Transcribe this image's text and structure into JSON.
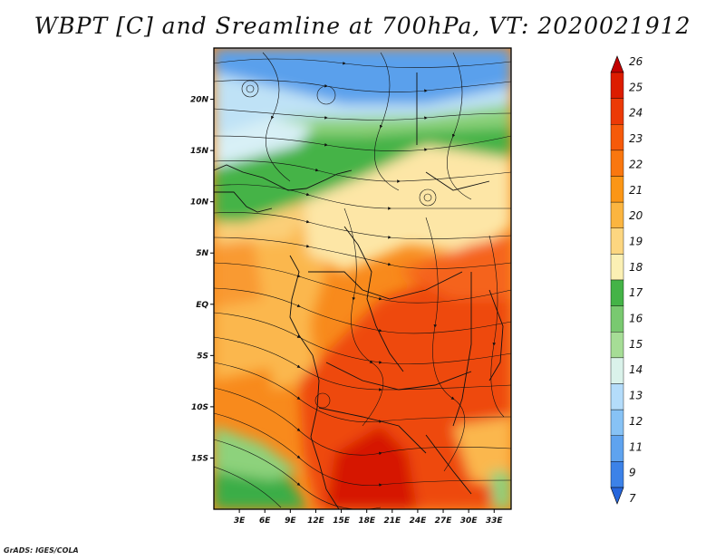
{
  "figure": {
    "title": "WBPT [C] and Sreamline at 700hPa, VT: 2020021912",
    "credit": "GrADS: IGES/COLA"
  },
  "chart_data": {
    "type": "heatmap",
    "variable": "Wet-bulb potential temperature",
    "units": "C",
    "level": "700hPa",
    "valid_time": "2020021912",
    "overlay": "streamlines",
    "x_axis": {
      "range": [
        0,
        35
      ],
      "units": "degrees east",
      "ticks": [
        3,
        6,
        9,
        12,
        15,
        18,
        21,
        24,
        27,
        30,
        33
      ],
      "tick_labels": [
        "3E",
        "6E",
        "9E",
        "12E",
        "15E",
        "18E",
        "21E",
        "24E",
        "27E",
        "30E",
        "33E"
      ]
    },
    "y_axis": {
      "range": [
        -20,
        25
      ],
      "units": "degrees north",
      "ticks": [
        20,
        15,
        10,
        5,
        0,
        -5,
        -10,
        -15
      ],
      "tick_labels": [
        "20N",
        "15N",
        "10N",
        "5N",
        "EQ",
        "5S",
        "10S",
        "15S"
      ]
    },
    "colorbar": {
      "levels": [
        "26",
        "25",
        "24",
        "23",
        "22",
        "21",
        "20",
        "19",
        "18",
        "17",
        "16",
        "15",
        "14",
        "13",
        "12",
        "11",
        "9",
        "7"
      ],
      "colors": [
        "#c20000",
        "#dc1c00",
        "#ec3a06",
        "#f65a0a",
        "#f9770f",
        "#fb9616",
        "#fbb540",
        "#fcd680",
        "#fbf0b4",
        "#44b347",
        "#79c970",
        "#a6dd96",
        "#daf2ea",
        "#b4dcfa",
        "#87c2f5",
        "#5fa3ef",
        "#3c82e8",
        "#2666dc"
      ]
    }
  },
  "colors": {
    "cold": "#5aa0ec",
    "cool": "#d8f0f6",
    "green": "#3aad47",
    "lightgreen": "#8dd27c",
    "cream": "#fde6a6",
    "warm": "#fbb74e",
    "orange": "#f88a1c",
    "hot": "#ee4a08",
    "hottest": "#d61800"
  }
}
